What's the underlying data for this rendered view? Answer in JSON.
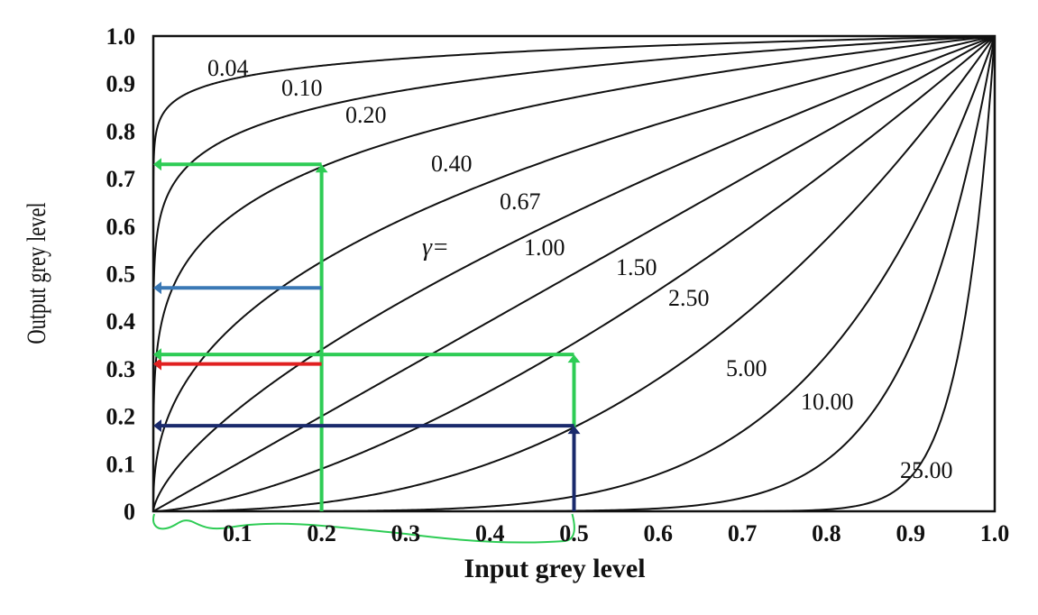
{
  "chart_data": {
    "type": "line",
    "title": "",
    "xlabel": "Input grey level",
    "ylabel": "Output grey level",
    "xlim": [
      0,
      1
    ],
    "ylim": [
      0,
      1
    ],
    "x_ticks": [
      "0.1",
      "0.2",
      "0.3",
      "0.4",
      "0.5",
      "0.6",
      "0.7",
      "0.8",
      "0.9",
      "1.0"
    ],
    "y_ticks": [
      "0",
      "0.1",
      "0.2",
      "0.3",
      "0.4",
      "0.5",
      "0.6",
      "0.7",
      "0.8",
      "0.9",
      "1.0"
    ],
    "gamma_prefix": "γ=",
    "series": [
      {
        "name": "0.04",
        "gamma": 0.04
      },
      {
        "name": "0.10",
        "gamma": 0.1
      },
      {
        "name": "0.20",
        "gamma": 0.2
      },
      {
        "name": "0.40",
        "gamma": 0.4
      },
      {
        "name": "0.67",
        "gamma": 0.67
      },
      {
        "name": "1.00",
        "gamma": 1.0
      },
      {
        "name": "1.50",
        "gamma": 1.5
      },
      {
        "name": "2.50",
        "gamma": 2.5
      },
      {
        "name": "5.00",
        "gamma": 5.0
      },
      {
        "name": "10.00",
        "gamma": 10.0
      },
      {
        "name": "25.00",
        "gamma": 25.0
      }
    ],
    "curve_color": "#111111",
    "annotations": [
      {
        "type": "vertical-arrow",
        "x": 0.2,
        "y_from": 0,
        "y_to": 0.73,
        "color": "#2ecc55"
      },
      {
        "type": "horizontal-arrow",
        "y": 0.73,
        "x_from": 0.2,
        "x_to": 0,
        "color": "#2ecc55"
      },
      {
        "type": "horizontal-arrow",
        "y": 0.47,
        "x_from": 0.2,
        "x_to": 0,
        "color": "#3a78b5"
      },
      {
        "type": "horizontal-arrow",
        "y": 0.31,
        "x_from": 0.2,
        "x_to": 0,
        "color": "#e02020"
      },
      {
        "type": "vertical-arrow",
        "x": 0.5,
        "y_from": 0,
        "y_to": 0.33,
        "color": "#2ecc55"
      },
      {
        "type": "horizontal-arrow",
        "y": 0.33,
        "x_from": 0.5,
        "x_to": 0,
        "color": "#2ecc55"
      },
      {
        "type": "vertical-arrow",
        "x": 0.5,
        "y_from": 0,
        "y_to": 0.18,
        "color": "#1a2a6c"
      },
      {
        "type": "horizontal-arrow",
        "y": 0.18,
        "x_from": 0.5,
        "x_to": 0,
        "color": "#1a2a6c"
      },
      {
        "type": "scribble-underline",
        "x_from": 0,
        "x_to": 0.5,
        "color": "#2ecc55"
      }
    ]
  }
}
